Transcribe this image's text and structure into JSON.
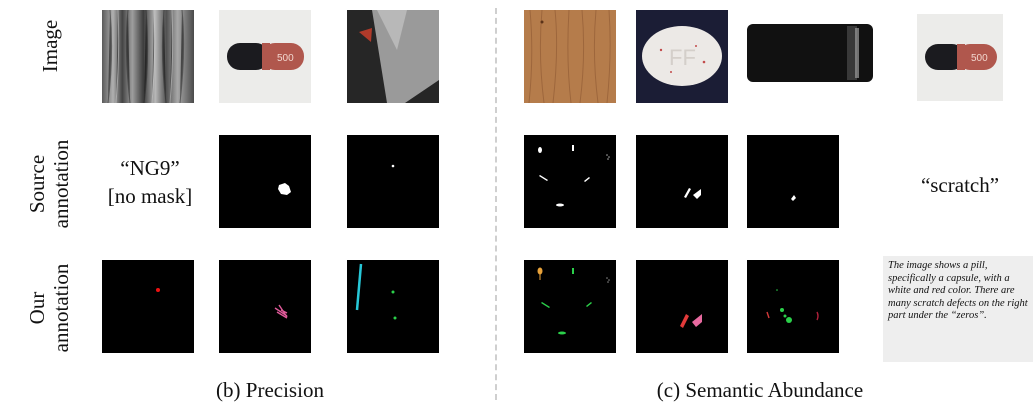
{
  "row_labels": {
    "image": "Image",
    "source_line1": "Source",
    "source_line2": "annotation",
    "our_line1": "Our",
    "our_line2": "annotation"
  },
  "cells": {
    "ng9_line1": "“NG9”",
    "ng9_line2": "[no mask]",
    "scratch": "“scratch”"
  },
  "description": "The image shows a pill, specifically a capsule, with a white and red color. There are many scratch defects on the right part under the “zeros”.",
  "captions": {
    "precision": "(b) Precision",
    "semantic": "(c) Semantic Abundance"
  },
  "capsule_text": "500",
  "pill_text": "FF"
}
